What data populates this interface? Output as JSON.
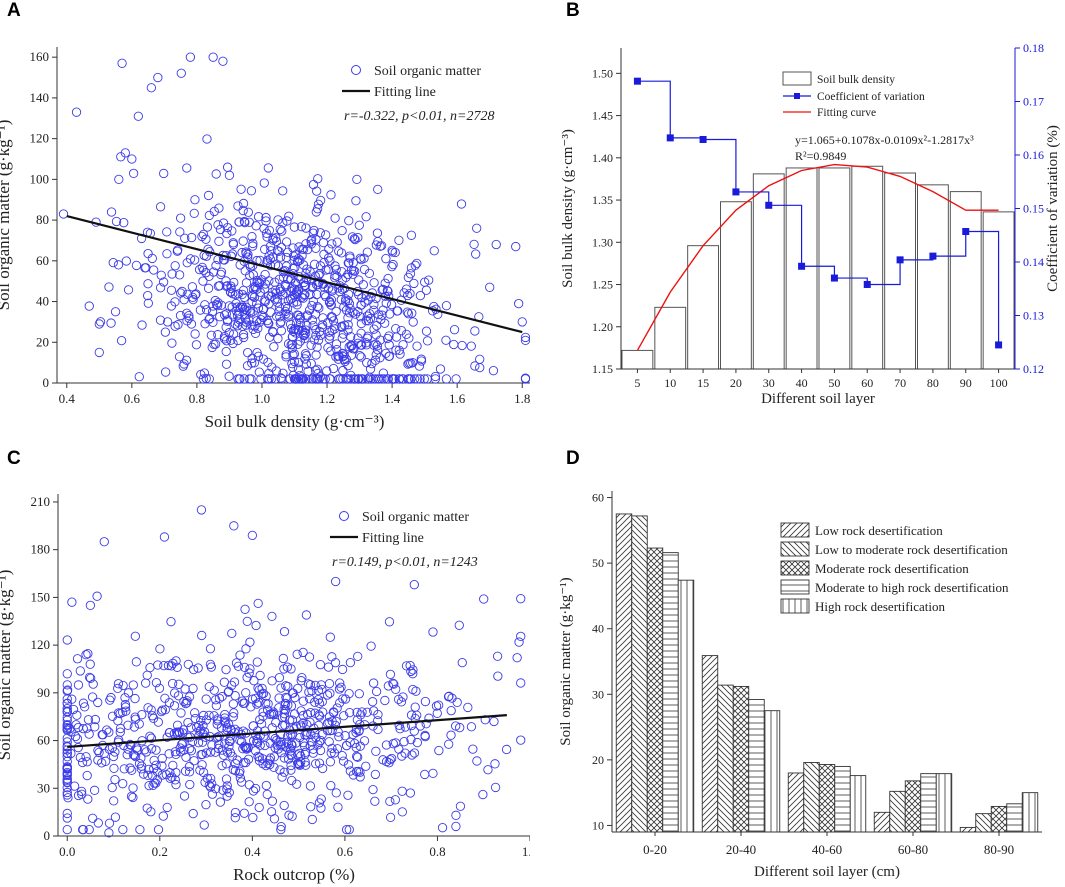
{
  "chart_data": [
    {
      "id": "A",
      "type": "scatter",
      "panel_label": "A",
      "xlabel": "Soil bulk density (g·cm⁻³)",
      "ylabel": "Soil organic matter (g·kg⁻¹)",
      "xlim": [
        0.37,
        1.83
      ],
      "ylim": [
        0,
        165
      ],
      "xticks": [
        0.4,
        0.6,
        0.8,
        1.0,
        1.2,
        1.4,
        1.6,
        1.8
      ],
      "xtick_labels": [
        "0.4",
        "0.6",
        "0.8",
        "1.0",
        "1.2",
        "1.4",
        "1.6",
        "1.8"
      ],
      "yticks": [
        0,
        20,
        40,
        60,
        80,
        100,
        120,
        140,
        160
      ],
      "ytick_labels": [
        "0",
        "20",
        "40",
        "60",
        "80",
        "100",
        "120",
        "140",
        "160"
      ],
      "legend": {
        "scatter": "Soil organic matter",
        "line": "Fitting line"
      },
      "annotation": "r=-0.322, p<0.01, n=2728",
      "fit_line": {
        "x": [
          0.4,
          1.8
        ],
        "y": [
          82,
          25
        ]
      },
      "point_cloud": {
        "seed": 11,
        "count": 900,
        "x_center": 1.12,
        "x_spread": 0.23,
        "y_intercept": 82,
        "y_slope": -40.7,
        "y_spread": 26,
        "y_min": 2,
        "y_max": 160
      },
      "points": [
        [
          0.39,
          83
        ],
        [
          0.43,
          133
        ],
        [
          0.49,
          79
        ],
        [
          0.5,
          29
        ],
        [
          0.55,
          35
        ],
        [
          0.56,
          100
        ],
        [
          0.57,
          157
        ],
        [
          0.58,
          113
        ],
        [
          0.6,
          110
        ],
        [
          0.62,
          131
        ],
        [
          0.63,
          71
        ],
        [
          0.66,
          145
        ],
        [
          0.68,
          150
        ],
        [
          0.71,
          30
        ],
        [
          0.78,
          160
        ],
        [
          0.85,
          160
        ],
        [
          0.88,
          158
        ],
        [
          1.66,
          76
        ],
        [
          1.7,
          47
        ],
        [
          1.72,
          68
        ],
        [
          1.78,
          67
        ],
        [
          1.8,
          30
        ],
        [
          1.18,
          3
        ]
      ]
    },
    {
      "id": "B",
      "type": "bar",
      "panel_label": "B",
      "categories": [
        "5",
        "10",
        "15",
        "20",
        "30",
        "40",
        "50",
        "60",
        "70",
        "80",
        "90",
        "100"
      ],
      "xlabel": "Different soil layer",
      "ylabel": "Soil bulk density (g·cm⁻³)",
      "y2label": "Coefficient of variation (%)",
      "ylim": [
        1.15,
        1.53
      ],
      "y2lim": [
        0.12,
        0.18
      ],
      "yticks": [
        1.15,
        1.2,
        1.25,
        1.3,
        1.35,
        1.4,
        1.45,
        1.5
      ],
      "ytick_labels": [
        "1.15",
        "1.20",
        "1.25",
        "1.30",
        "1.35",
        "1.40",
        "1.45",
        "1.50"
      ],
      "y2ticks": [
        0.12,
        0.13,
        0.14,
        0.15,
        0.16,
        0.17,
        0.18
      ],
      "y2tick_labels": [
        "0.12",
        "0.13",
        "0.14",
        "0.15",
        "0.16",
        "0.17",
        "0.18"
      ],
      "series": [
        {
          "name": "Soil bulk density",
          "kind": "bar",
          "values": [
            1.172,
            1.223,
            1.296,
            1.348,
            1.381,
            1.388,
            1.388,
            1.39,
            1.382,
            1.368,
            1.36,
            1.336
          ]
        },
        {
          "name": "Coefficient of variation",
          "kind": "step",
          "axis": "right",
          "values": [
            0.1738,
            0.1632,
            0.1629,
            0.1531,
            0.1506,
            0.1392,
            0.137,
            0.1358,
            0.1404,
            0.1411,
            0.1457,
            0.1245
          ]
        },
        {
          "name": "Fitting curve",
          "kind": "curve",
          "values": [
            1.172,
            1.241,
            1.296,
            1.338,
            1.367,
            1.385,
            1.392,
            1.389,
            1.378,
            1.36,
            1.338,
            1.338
          ]
        }
      ],
      "fit_equation": "y=1.065+0.1078x-0.0109x²-1.2817x³",
      "r_squared": "R²=0.9849",
      "colors": {
        "cv": "#1a1adb",
        "curve": "#ee1111"
      }
    },
    {
      "id": "C",
      "type": "scatter",
      "panel_label": "C",
      "xlabel": "Rock outcrop (%)",
      "ylabel": "Soil organic matter (g·kg⁻¹)",
      "xlim": [
        -0.02,
        1.0
      ],
      "ylim": [
        0,
        215
      ],
      "xticks": [
        0.0,
        0.2,
        0.4,
        0.6,
        0.8,
        1.0
      ],
      "xtick_labels": [
        "0.0",
        "0.2",
        "0.4",
        "0.6",
        "0.8",
        "1.0"
      ],
      "yticks": [
        0,
        30,
        60,
        90,
        120,
        150,
        180,
        210
      ],
      "ytick_labels": [
        "0",
        "30",
        "60",
        "90",
        "120",
        "150",
        "180",
        "210"
      ],
      "legend": {
        "scatter": "Soil organic matter",
        "line": "Fitting line"
      },
      "annotation": "r=0.149, p<0.01, n=1243",
      "fit_line": {
        "x": [
          0.0,
          0.95
        ],
        "y": [
          56,
          76
        ]
      },
      "point_cloud": {
        "seed": 29,
        "count": 820,
        "x_center": 0.38,
        "x_spread": 0.24,
        "y_intercept": 56,
        "y_slope": 21,
        "y_spread": 28,
        "y_min": 4,
        "y_max": 200
      },
      "points": [
        [
          0.09,
          2
        ],
        [
          0.08,
          185
        ],
        [
          0.21,
          188
        ],
        [
          0.29,
          205
        ],
        [
          0.36,
          195
        ],
        [
          0.4,
          189
        ],
        [
          0.01,
          147
        ],
        [
          0.05,
          145
        ],
        [
          0.93,
          113
        ],
        [
          0.9,
          149
        ],
        [
          0.84,
          13
        ],
        [
          0.58,
          160
        ],
        [
          0.75,
          158
        ]
      ]
    },
    {
      "id": "D",
      "type": "bar",
      "panel_label": "D",
      "categories": [
        "0-20",
        "20-40",
        "40-60",
        "60-80",
        "80-90"
      ],
      "xlabel": "Different soil layer (cm)",
      "ylabel": "Soil organic matter (g·kg⁻¹)",
      "ylim": [
        9,
        61
      ],
      "yticks": [
        10,
        20,
        30,
        40,
        50,
        60
      ],
      "ytick_labels": [
        "10",
        "20",
        "30",
        "40",
        "50",
        "60"
      ],
      "series": [
        {
          "name": "Low rock desertification",
          "pattern": "diag-right",
          "values": [
            57.5,
            35.9,
            18.0,
            12.0,
            9.7
          ]
        },
        {
          "name": "Low to moderate rock desertification",
          "pattern": "diag-left",
          "values": [
            57.2,
            31.4,
            19.6,
            15.2,
            11.8
          ]
        },
        {
          "name": "Moderate rock desertification",
          "pattern": "crosshatch",
          "values": [
            52.3,
            31.2,
            19.3,
            16.8,
            12.9
          ]
        },
        {
          "name": "Moderate to high rock desertification",
          "pattern": "horizontal",
          "values": [
            51.6,
            29.2,
            19.0,
            17.9,
            13.3
          ]
        },
        {
          "name": "High rock desertification",
          "pattern": "vertical",
          "values": [
            47.4,
            27.5,
            17.6,
            17.9,
            15.0
          ]
        }
      ]
    }
  ]
}
